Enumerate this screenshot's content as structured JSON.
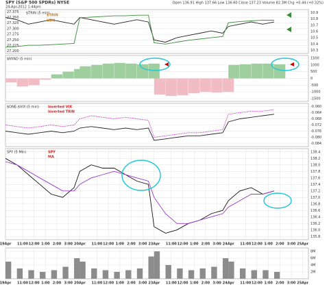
{
  "header": {
    "title": "SPY (S&P 500 SPDRs) NYSE",
    "date": "24-Apr-2012 1:44pm",
    "stats": "Open 136.91 High 137.66 Low 136.60 Close 137.23 Volume 82.3M Chg +0.44 (+0.32%)"
  },
  "chart_data": [
    {
      "type": "line",
      "title": "$TRIN (5 min)",
      "x": [
        0,
        1,
        2,
        3,
        4,
        5,
        6,
        6.5,
        7.5,
        8.5,
        9.5,
        10.5,
        11.5,
        12.5,
        13,
        14,
        15,
        16,
        17,
        18,
        19,
        19.5,
        20.5,
        21.5,
        22.5,
        23.5
      ],
      "xlim": [
        0,
        26.5
      ],
      "ylim": [
        27.19,
        27.385
      ],
      "yticks": [
        {
          "value": 27.2,
          "label": "27.200"
        },
        27.225,
        {
          "value": 27.25,
          "label": "27.250"
        },
        27.275,
        {
          "value": 27.3,
          "label": "27.300"
        },
        27.325,
        {
          "value": 27.35,
          "label": "27.350"
        },
        27.375
      ],
      "y2lim": [
        10.25,
        10.95
      ],
      "y2ticks": [
        10.3,
        10.4,
        10.5,
        10.6,
        10.7,
        10.8,
        10.9
      ],
      "series": [
        {
          "name": "$TRIN",
          "color": "#222222",
          "values": [
            27.35,
            27.34,
            27.32,
            27.33,
            27.34,
            27.33,
            27.32,
            27.35,
            27.34,
            27.33,
            27.32,
            27.33,
            27.34,
            27.33,
            27.25,
            27.24,
            27.26,
            27.27,
            27.28,
            27.29,
            27.28,
            27.31,
            27.32,
            27.33,
            27.32,
            27.33
          ]
        },
        {
          "name": "UDN",
          "color": "#3a8a3a",
          "axis": "y2",
          "values": [
            10.35,
            10.36,
            10.38,
            10.38,
            10.39,
            10.4,
            10.41,
            10.82,
            10.83,
            10.84,
            10.85,
            10.85,
            10.86,
            10.86,
            10.42,
            10.4,
            10.43,
            10.46,
            10.48,
            10.5,
            10.52,
            10.74,
            10.76,
            10.77,
            10.78,
            10.78
          ]
        }
      ]
    },
    {
      "type": "bar",
      "title": "$NYAD (5 min)",
      "x": [
        0,
        1,
        2,
        3,
        4,
        5,
        6,
        6.5,
        7.5,
        8.5,
        9.5,
        10.5,
        11.5,
        12.5,
        13,
        14,
        15,
        16,
        17,
        18,
        19,
        19.5,
        20.5,
        21.5,
        22.5,
        23.5
      ],
      "xlim": [
        0,
        26.5
      ],
      "ylim": [
        -1700,
        1700
      ],
      "yticks": [
        -1500,
        -1000,
        -500,
        0,
        500,
        1000,
        1500
      ],
      "colors": {
        "positive": "#9fcf9f",
        "negative": "#f2bcc4"
      },
      "values": [
        -300,
        -600,
        -500,
        -100,
        300,
        500,
        700,
        900,
        1000,
        1100,
        1150,
        1100,
        1050,
        1100,
        -1200,
        -1300,
        -1250,
        -1100,
        -1000,
        -1050,
        -1000,
        1000,
        1050,
        1100,
        1100,
        1050
      ]
    },
    {
      "type": "line",
      "title": "$ONE-$VIX (5 min)",
      "x": [
        0,
        1,
        2,
        3,
        4,
        5,
        6,
        6.5,
        7.5,
        8.5,
        9.5,
        10.5,
        11.5,
        12.5,
        13,
        14,
        15,
        16,
        17,
        18,
        19,
        19.5,
        20.5,
        21.5,
        22.5,
        23.5
      ],
      "xlim": [
        0,
        26.5
      ],
      "ylim": [
        -0.086,
        -0.058
      ],
      "yticks": [
        -0.084,
        {
          "value": -0.08,
          "label": "-0.080"
        },
        -0.076,
        -0.072,
        -0.068,
        -0.064,
        {
          "value": -0.06,
          "label": "-0.060"
        }
      ],
      "series": [
        {
          "name": "Inverted VIX",
          "color": "#222222",
          "values": [
            -0.076,
            -0.077,
            -0.078,
            -0.077,
            -0.076,
            -0.077,
            -0.076,
            -0.074,
            -0.073,
            -0.074,
            -0.075,
            -0.074,
            -0.075,
            -0.074,
            -0.082,
            -0.081,
            -0.08,
            -0.079,
            -0.079,
            -0.078,
            -0.077,
            -0.07,
            -0.068,
            -0.067,
            -0.066,
            -0.065
          ]
        },
        {
          "name": "Inverted TRIN",
          "color": "#cc33cc",
          "dashed": true,
          "values": [
            -0.072,
            -0.073,
            -0.074,
            -0.073,
            -0.072,
            -0.073,
            -0.072,
            -0.068,
            -0.066,
            -0.067,
            -0.068,
            -0.067,
            -0.068,
            -0.069,
            -0.08,
            -0.079,
            -0.078,
            -0.077,
            -0.077,
            -0.076,
            -0.075,
            -0.065,
            -0.064,
            -0.063,
            -0.063,
            -0.062
          ]
        }
      ]
    },
    {
      "type": "line",
      "title": "SPY (5 Min)",
      "x": [
        0,
        1,
        2,
        3,
        4,
        5,
        6,
        6.5,
        7.5,
        8.5,
        9.5,
        10.5,
        11.5,
        12.5,
        13,
        14,
        15,
        16,
        17,
        18,
        19,
        19.5,
        20.5,
        21.5,
        22.5,
        23.5
      ],
      "xlim": [
        0,
        26.5
      ],
      "ylim": [
        135.7,
        138.5
      ],
      "yticks": [
        135.8,
        {
          "value": 136,
          "label": "136.0"
        },
        136.2,
        136.4,
        136.6,
        136.8,
        {
          "value": 137,
          "label": "137.0"
        },
        137.2,
        137.4,
        137.6,
        137.8,
        {
          "value": 138,
          "label": "138.0"
        },
        138.2,
        138.4
      ],
      "xticks": [
        {
          "value": 0,
          "label": "19Apr"
        },
        {
          "value": 1.5,
          "label": "11:00"
        },
        {
          "value": 2.5,
          "label": "12:00"
        },
        {
          "value": 3.5,
          "label": "1:00"
        },
        {
          "value": 4.5,
          "label": "2:00"
        },
        {
          "value": 5.5,
          "label": "3:00"
        },
        {
          "value": 6.5,
          "label": "20Apr"
        },
        {
          "value": 8,
          "label": "11:00"
        },
        {
          "value": 9,
          "label": "12:00"
        },
        {
          "value": 10,
          "label": "1:00"
        },
        {
          "value": 11,
          "label": "2:00"
        },
        {
          "value": 12,
          "label": "3:00"
        },
        {
          "value": 13,
          "label": "23Apr"
        },
        {
          "value": 14.5,
          "label": "11:00"
        },
        {
          "value": 15.5,
          "label": "12:00"
        },
        {
          "value": 16.5,
          "label": "1:00"
        },
        {
          "value": 17.5,
          "label": "2:00"
        },
        {
          "value": 18.5,
          "label": "3:00"
        },
        {
          "value": 19.5,
          "label": "24Apr"
        },
        {
          "value": 21,
          "label": "11:00"
        },
        {
          "value": 22,
          "label": "12:00"
        },
        {
          "value": 23,
          "label": "1:00"
        },
        {
          "value": 24,
          "label": "2:00"
        },
        {
          "value": 25,
          "label": "3:00"
        },
        {
          "value": 26,
          "label": "25Apr"
        }
      ],
      "series": [
        {
          "name": "SPY",
          "color": "#111111",
          "values": [
            138.2,
            138.0,
            137.7,
            137.4,
            137.1,
            137.0,
            137.3,
            137.8,
            138.0,
            137.9,
            137.9,
            137.7,
            137.5,
            137.4,
            136.1,
            135.9,
            136.0,
            136.2,
            136.3,
            136.5,
            136.6,
            136.9,
            137.2,
            137.3,
            137.1,
            137.2
          ]
        },
        {
          "name": "MA",
          "color": "#9933cc",
          "values": [
            138.1,
            138.0,
            137.8,
            137.6,
            137.4,
            137.2,
            137.2,
            137.4,
            137.6,
            137.7,
            137.8,
            137.7,
            137.6,
            137.5,
            137.0,
            136.5,
            136.2,
            136.2,
            136.3,
            136.4,
            136.5,
            136.7,
            136.9,
            137.1,
            137.1,
            137.2
          ]
        }
      ]
    },
    {
      "type": "bar",
      "x": [
        0,
        1,
        2,
        3,
        4,
        5,
        6,
        6.5,
        7.5,
        8.5,
        9.5,
        10.5,
        11.5,
        12.5,
        13,
        14,
        15,
        16,
        17,
        18,
        19,
        19.5,
        20.5,
        21.5,
        22.5,
        23.5
      ],
      "xlim": [
        0,
        26.5
      ],
      "ylim": [
        0,
        9000000
      ],
      "yticks": [
        {
          "value": 2000000,
          "label": "2M"
        },
        {
          "value": 4000000,
          "label": "4M"
        },
        {
          "value": 6000000,
          "label": "6M"
        },
        {
          "value": 8000000,
          "label": "8M"
        }
      ],
      "color": "#8c8c8c",
      "xticks": [
        {
          "value": 0,
          "label": "19Apr"
        },
        {
          "value": 1.5,
          "label": "11:00"
        },
        {
          "value": 2.5,
          "label": "12:00"
        },
        {
          "value": 3.5,
          "label": "1:00"
        },
        {
          "value": 4.5,
          "label": "2:00"
        },
        {
          "value": 5.5,
          "label": "3:00"
        },
        {
          "value": 6.5,
          "label": "20Apr"
        },
        {
          "value": 8,
          "label": "11:00"
        },
        {
          "value": 9,
          "label": "12:00"
        },
        {
          "value": 10,
          "label": "1:00"
        },
        {
          "value": 11,
          "label": "2:00"
        },
        {
          "value": 12,
          "label": "3:00"
        },
        {
          "value": 13,
          "label": "23Apr"
        },
        {
          "value": 14.5,
          "label": "11:00"
        },
        {
          "value": 15.5,
          "label": "12:00"
        },
        {
          "value": 16.5,
          "label": "1:00"
        },
        {
          "value": 17.5,
          "label": "2:00"
        },
        {
          "value": 18.5,
          "label": "3:00"
        },
        {
          "value": 19.5,
          "label": "24Apr"
        },
        {
          "value": 21,
          "label": "11:00"
        },
        {
          "value": 22,
          "label": "12:00"
        },
        {
          "value": 23,
          "label": "1:00"
        },
        {
          "value": 24,
          "label": "2:00"
        },
        {
          "value": 25,
          "label": "3:00"
        },
        {
          "value": 26,
          "label": "25Apr"
        }
      ],
      "values": [
        5000000,
        3000000,
        2500000,
        2000000,
        2500000,
        3500000,
        6000000,
        5000000,
        3000000,
        2500000,
        2000000,
        2500000,
        3000000,
        6500000,
        8000000,
        4000000,
        3000000,
        2500000,
        3000000,
        3500000,
        6000000,
        5000000,
        3000000,
        2500000,
        2500000,
        2000000
      ]
    }
  ]
}
